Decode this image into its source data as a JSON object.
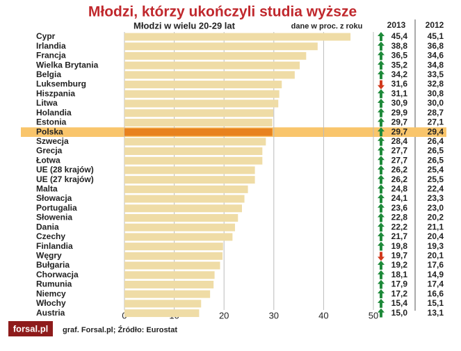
{
  "chart_data": {
    "type": "bar",
    "orientation": "horizontal",
    "title": "Młodzi, którzy ukończyli studia wyższe",
    "subtitle": "Młodzi w wielu 20-29 lat",
    "note": "dane w proc. z roku",
    "source": "graf. Forsal.pl; Źródło: Eurostat",
    "logo": "forsal.pl",
    "categories": [
      "Cypr",
      "Irlandia",
      "Francja",
      "Wielka Brytania",
      "Belgia",
      "Luksemburg",
      "Hiszpania",
      "Litwa",
      "Holandia",
      "Estonia",
      "Polska",
      "Szwecja",
      "Grecja",
      "Łotwa",
      "UE (28 krajów)",
      "UE (27 krajów)",
      "Malta",
      "Słowacja",
      "Portugalia",
      "Słowenia",
      "Dania",
      "Czechy",
      "Finlandia",
      "Węgry",
      "Bułgaria",
      "Chorwacja",
      "Rumunia",
      "Niemcy",
      "Włochy",
      "Austria"
    ],
    "series": [
      {
        "name": "2013",
        "color": "#efdca6",
        "values": [
          45.4,
          38.8,
          36.5,
          35.2,
          34.2,
          31.6,
          31.1,
          30.9,
          29.9,
          29.7,
          29.7,
          28.4,
          27.7,
          27.7,
          26.2,
          26.2,
          24.8,
          24.1,
          23.6,
          22.8,
          22.2,
          21.7,
          19.8,
          19.7,
          19.2,
          18.1,
          17.9,
          17.2,
          15.4,
          15.0
        ],
        "value_labels": [
          "45,4",
          "38,8",
          "36,5",
          "35,2",
          "34,2",
          "31,6",
          "31,1",
          "30,9",
          "29,9",
          "29,7",
          "29,7",
          "28,4",
          "27,7",
          "27,7",
          "26,2",
          "26,2",
          "24,8",
          "24,1",
          "23,6",
          "22,8",
          "22,2",
          "21,7",
          "19,8",
          "19,7",
          "19,2",
          "18,1",
          "17,9",
          "17,2",
          "15,4",
          "15,0"
        ]
      },
      {
        "name": "2012",
        "values": [
          45.1,
          36.8,
          34.6,
          34.8,
          33.5,
          32.8,
          30.8,
          30.0,
          28.7,
          27.1,
          29.4,
          26.4,
          26.5,
          26.5,
          25.4,
          25.5,
          22.4,
          23.3,
          23.0,
          20.2,
          21.1,
          20.4,
          19.3,
          20.1,
          17.6,
          14.9,
          17.4,
          16.6,
          15.1,
          13.1
        ],
        "value_labels": [
          "45,1",
          "36,8",
          "34,6",
          "34,8",
          "33,5",
          "32,8",
          "30,8",
          "30,0",
          "28,7",
          "27,1",
          "29,4",
          "26,4",
          "26,5",
          "26,5",
          "25,4",
          "25,5",
          "22,4",
          "23,3",
          "23,0",
          "20,2",
          "21,1",
          "20,4",
          "19,3",
          "20,1",
          "17,6",
          "14,9",
          "17,4",
          "16,6",
          "15,1",
          "13,1"
        ]
      }
    ],
    "highlight": {
      "index": 10,
      "bar_color": "#e8821e",
      "row_color": "#f9c56b"
    },
    "up_color": "#1e8a3a",
    "down_color": "#d0391c",
    "xlim": [
      0,
      50
    ],
    "xticks": [
      0,
      10,
      20,
      30,
      40,
      50
    ],
    "grid": true
  }
}
